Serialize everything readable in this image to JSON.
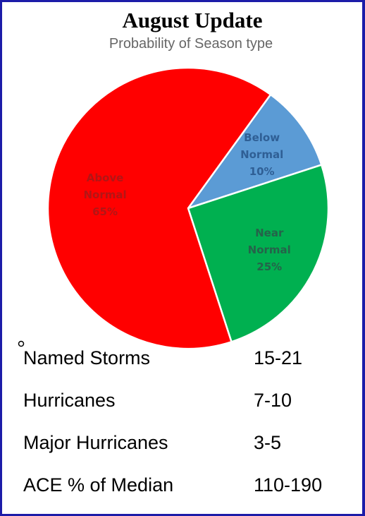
{
  "chart_data": {
    "type": "pie",
    "title": "August Update",
    "subtitle": "Probability of Season type",
    "categories": [
      "Below Normal",
      "Near Normal",
      "Above Normal"
    ],
    "values": [
      10,
      25,
      65
    ],
    "value_labels": [
      "10%",
      "25%",
      "65%"
    ],
    "colors": [
      "#5b9bd5",
      "#00b050",
      "#ff0000"
    ],
    "label_colors": [
      "#2f5f95",
      "#25634a",
      "#b31515"
    ]
  },
  "table": {
    "rows": [
      [
        "Named Storms",
        "15-21"
      ],
      [
        "Hurricanes",
        "7-10"
      ],
      [
        "Major Hurricanes",
        "3-5"
      ],
      [
        "ACE % of Median",
        "110-190"
      ]
    ]
  }
}
